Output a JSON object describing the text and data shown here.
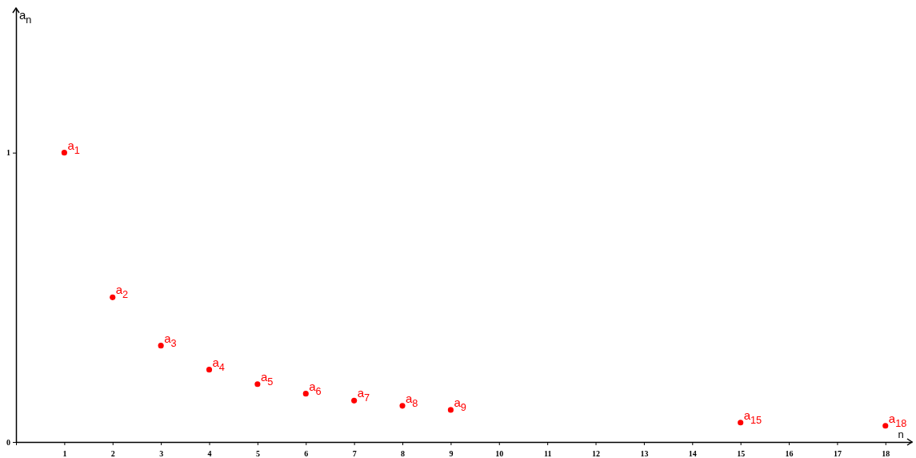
{
  "chart_data": {
    "type": "scatter",
    "xlabel": "n",
    "ylabel": "a$_{n}$",
    "x": [
      1,
      2,
      3,
      4,
      5,
      6,
      7,
      8,
      9,
      15,
      18
    ],
    "values": [
      1,
      0.5,
      0.333,
      0.25,
      0.2,
      0.167,
      0.143,
      0.125,
      0.111,
      0.067,
      0.056
    ],
    "color": "#ff0000",
    "marker": "circle",
    "grid": false,
    "xlim": [
      0,
      18.55
    ],
    "ylim": [
      0,
      1.5
    ],
    "xticks": [
      {
        "value": 0,
        "label": null
      },
      1,
      2,
      3,
      4,
      5,
      6,
      7,
      8,
      9,
      10,
      11,
      12,
      13,
      14,
      15,
      16,
      17,
      18
    ],
    "yticks": [
      0,
      1
    ],
    "annotations": [
      {
        "text": "a$_{1}$",
        "x": 1,
        "y": 1
      },
      {
        "text": "a$_{2}$",
        "x": 2,
        "y": 0.5
      },
      {
        "text": "a$_{3}$",
        "x": 3,
        "y": 0.333
      },
      {
        "text": "a$_{4}$",
        "x": 4,
        "y": 0.25
      },
      {
        "text": "a$_{5}$",
        "x": 5,
        "y": 0.2
      },
      {
        "text": "a$_{6}$",
        "x": 6,
        "y": 0.167
      },
      {
        "text": "a$_{7}$",
        "x": 7,
        "y": 0.143
      },
      {
        "text": "a$_{8}$",
        "x": 8,
        "y": 0.125
      },
      {
        "text": "a$_{9}$",
        "x": 9,
        "y": 0.111
      },
      {
        "text": "a$_{15}$",
        "x": 15,
        "y": 0.067
      },
      {
        "text": "a$_{18}$",
        "x": 18,
        "y": 0.056
      }
    ]
  }
}
